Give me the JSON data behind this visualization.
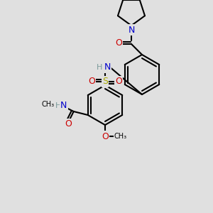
{
  "bg_color": "#e0e0e0",
  "bond_color": "#000000",
  "colors": {
    "N": "#0000cc",
    "O": "#cc0000",
    "S": "#aaaa00",
    "H": "#7a9a9a",
    "C": "#000000"
  },
  "lw": 1.5,
  "lw_double": 1.5
}
